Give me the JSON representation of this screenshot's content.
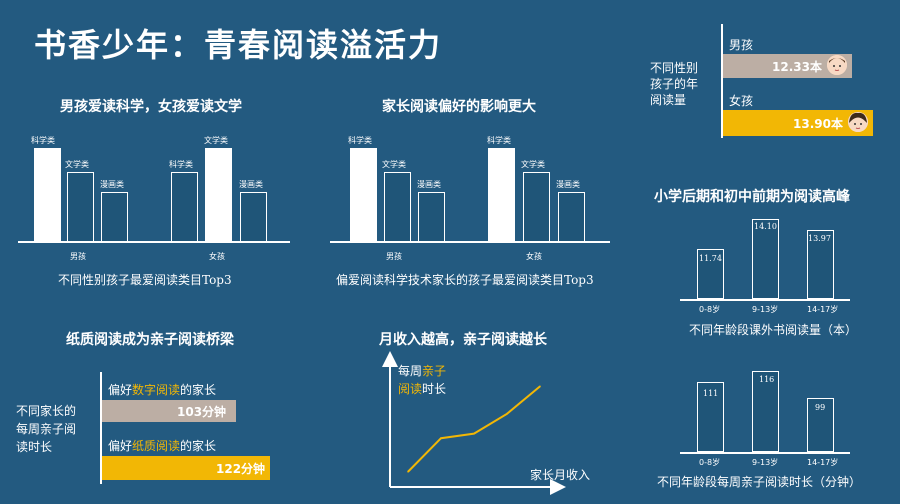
{
  "title": "书香少年：青春阅读溢活力",
  "colors": {
    "background": "#235a80",
    "accent": "#f2b705",
    "beige": "#bcaea4",
    "white": "#ffffff"
  },
  "gender_panel": {
    "side_label": "不同性别\n孩子的年\n阅读量",
    "boy": {
      "label": "男孩",
      "value_text": "12.33本",
      "avatar_icon": "boy-face-icon"
    },
    "girl": {
      "label": "女孩",
      "value_text": "13.90本",
      "avatar_icon": "girl-face-icon"
    }
  },
  "chart_data": [
    {
      "type": "bar",
      "id": "gender_categories",
      "title": "男孩爱读科学，女孩爱读文学",
      "caption": "不同性别孩子最爱阅读类目Top3",
      "groups": [
        {
          "name": "男孩",
          "categories": [
            "科学类",
            "文学类",
            "漫画类"
          ],
          "rank": [
            1,
            2,
            3
          ]
        },
        {
          "name": "女孩",
          "categories": [
            "科学类",
            "文学类",
            "漫画类"
          ],
          "rank": [
            2,
            1,
            3
          ]
        }
      ]
    },
    {
      "type": "bar",
      "id": "parent_preference",
      "title": "家长阅读偏好的影响更大",
      "caption": "偏爱阅读科学技术家长的孩子最爱阅读类目Top3",
      "groups": [
        {
          "name": "男孩",
          "categories": [
            "科学类",
            "文学类",
            "漫画类"
          ],
          "rank": [
            1,
            2,
            3
          ]
        },
        {
          "name": "女孩",
          "categories": [
            "科学类",
            "文学类",
            "漫画类"
          ],
          "rank": [
            1,
            2,
            3
          ]
        }
      ]
    },
    {
      "type": "bar",
      "id": "gender_yearly",
      "categories": [
        "男孩",
        "女孩"
      ],
      "values": [
        12.33,
        13.9
      ],
      "unit": "本"
    },
    {
      "type": "bar",
      "id": "age_books",
      "title": "小学后期和初中前期为阅读高峰",
      "caption": "不同年龄段课外书阅读量（本）",
      "categories": [
        "0-8岁",
        "9-13岁",
        "14-17岁"
      ],
      "values": [
        11.74,
        14.1,
        13.97
      ],
      "value_labels": [
        "11.74",
        "14.10",
        "13.97"
      ]
    },
    {
      "type": "bar",
      "id": "age_minutes",
      "caption": "不同年龄段每周亲子阅读时长（分钟）",
      "categories": [
        "0-8岁",
        "9-13岁",
        "14-17岁"
      ],
      "values": [
        111,
        116,
        99
      ],
      "value_labels": [
        "111",
        "116",
        "99"
      ]
    },
    {
      "type": "bar",
      "id": "paper_bridge",
      "title": "纸质阅读成为亲子阅读桥梁",
      "side_label": "不同家长的\n每周亲子阅\n读时长",
      "series": [
        {
          "label_pre": "偏好",
          "label_hl": "数字阅读",
          "label_post": "的家长",
          "value": 103,
          "value_text": "103分钟"
        },
        {
          "label_pre": "偏好",
          "label_hl": "纸质阅读",
          "label_post": "的家长",
          "value": 122,
          "value_text": "122分钟"
        }
      ]
    },
    {
      "type": "line",
      "id": "income_trend",
      "title": "月收入越高，亲子阅读越长",
      "ylabel_pre": "每周",
      "ylabel_hl1": "亲子",
      "ylabel_hl2": "阅读",
      "ylabel_post": "时长",
      "xlabel": "家长月收入",
      "values": [
        1,
        3.2,
        3.5,
        4.8,
        6.6
      ],
      "ylim": [
        0,
        8
      ]
    }
  ]
}
